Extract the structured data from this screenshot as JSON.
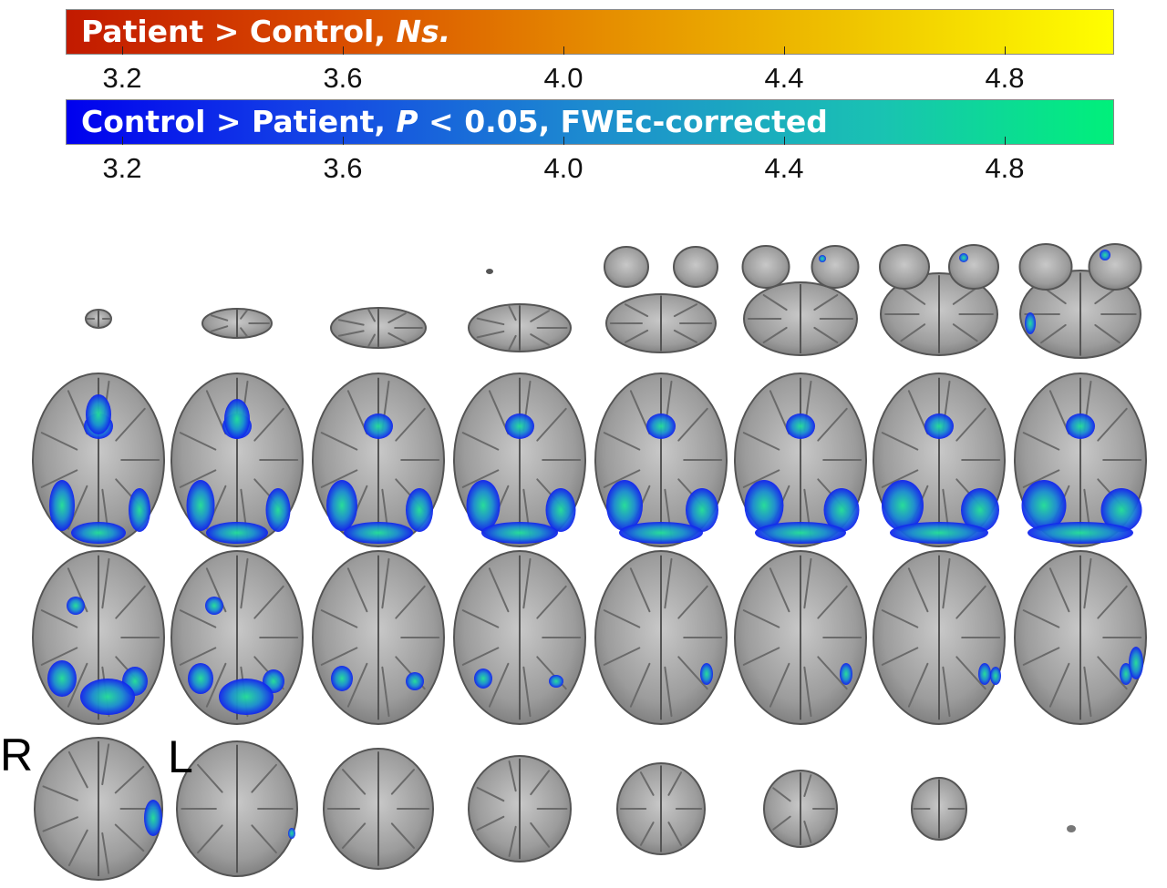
{
  "colorbars": {
    "hot": {
      "label_prefix": "Patient > Control, ",
      "label_italic": "Ns.",
      "ticks": [
        "3.2",
        "3.6",
        "4.0",
        "4.4",
        "4.8"
      ]
    },
    "cool": {
      "label_prefix": "Control > Patient, ",
      "label_italic": "P",
      "label_suffix": " < 0.05, FWEc-corrected",
      "ticks": [
        "3.2",
        "3.6",
        "4.0",
        "4.4",
        "4.8"
      ]
    }
  },
  "orientation": {
    "right": "R",
    "left": "L"
  },
  "colors": {
    "brain_tissue": "#9a9a9a",
    "brain_outline": "#5a5a5a",
    "activation_blue": "#1122ee",
    "activation_green": "#22e09a"
  }
}
